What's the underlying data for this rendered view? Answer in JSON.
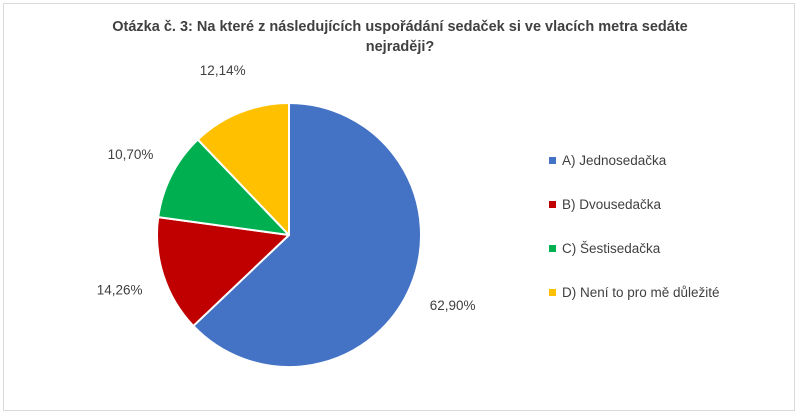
{
  "chart_data": {
    "type": "pie",
    "title_lines": [
      "Otázka č. 3: Na které z následujících uspořádání sedaček si ve vlacích metra sedáte",
      "nejraději?"
    ],
    "categories": [
      "A) Jednosedačka",
      "B) Dvousedačka",
      "C) Šestisedačka",
      "D) Není to pro mě důležité"
    ],
    "values": [
      62.9,
      14.26,
      10.7,
      12.14
    ],
    "data_labels": [
      "62,90%",
      "14,26%",
      "10,70%",
      "12,14%"
    ],
    "colors": [
      "#4472c4",
      "#c00000",
      "#00b050",
      "#ffc000"
    ],
    "legend_position": "right",
    "start_angle": "top, clockwise"
  }
}
